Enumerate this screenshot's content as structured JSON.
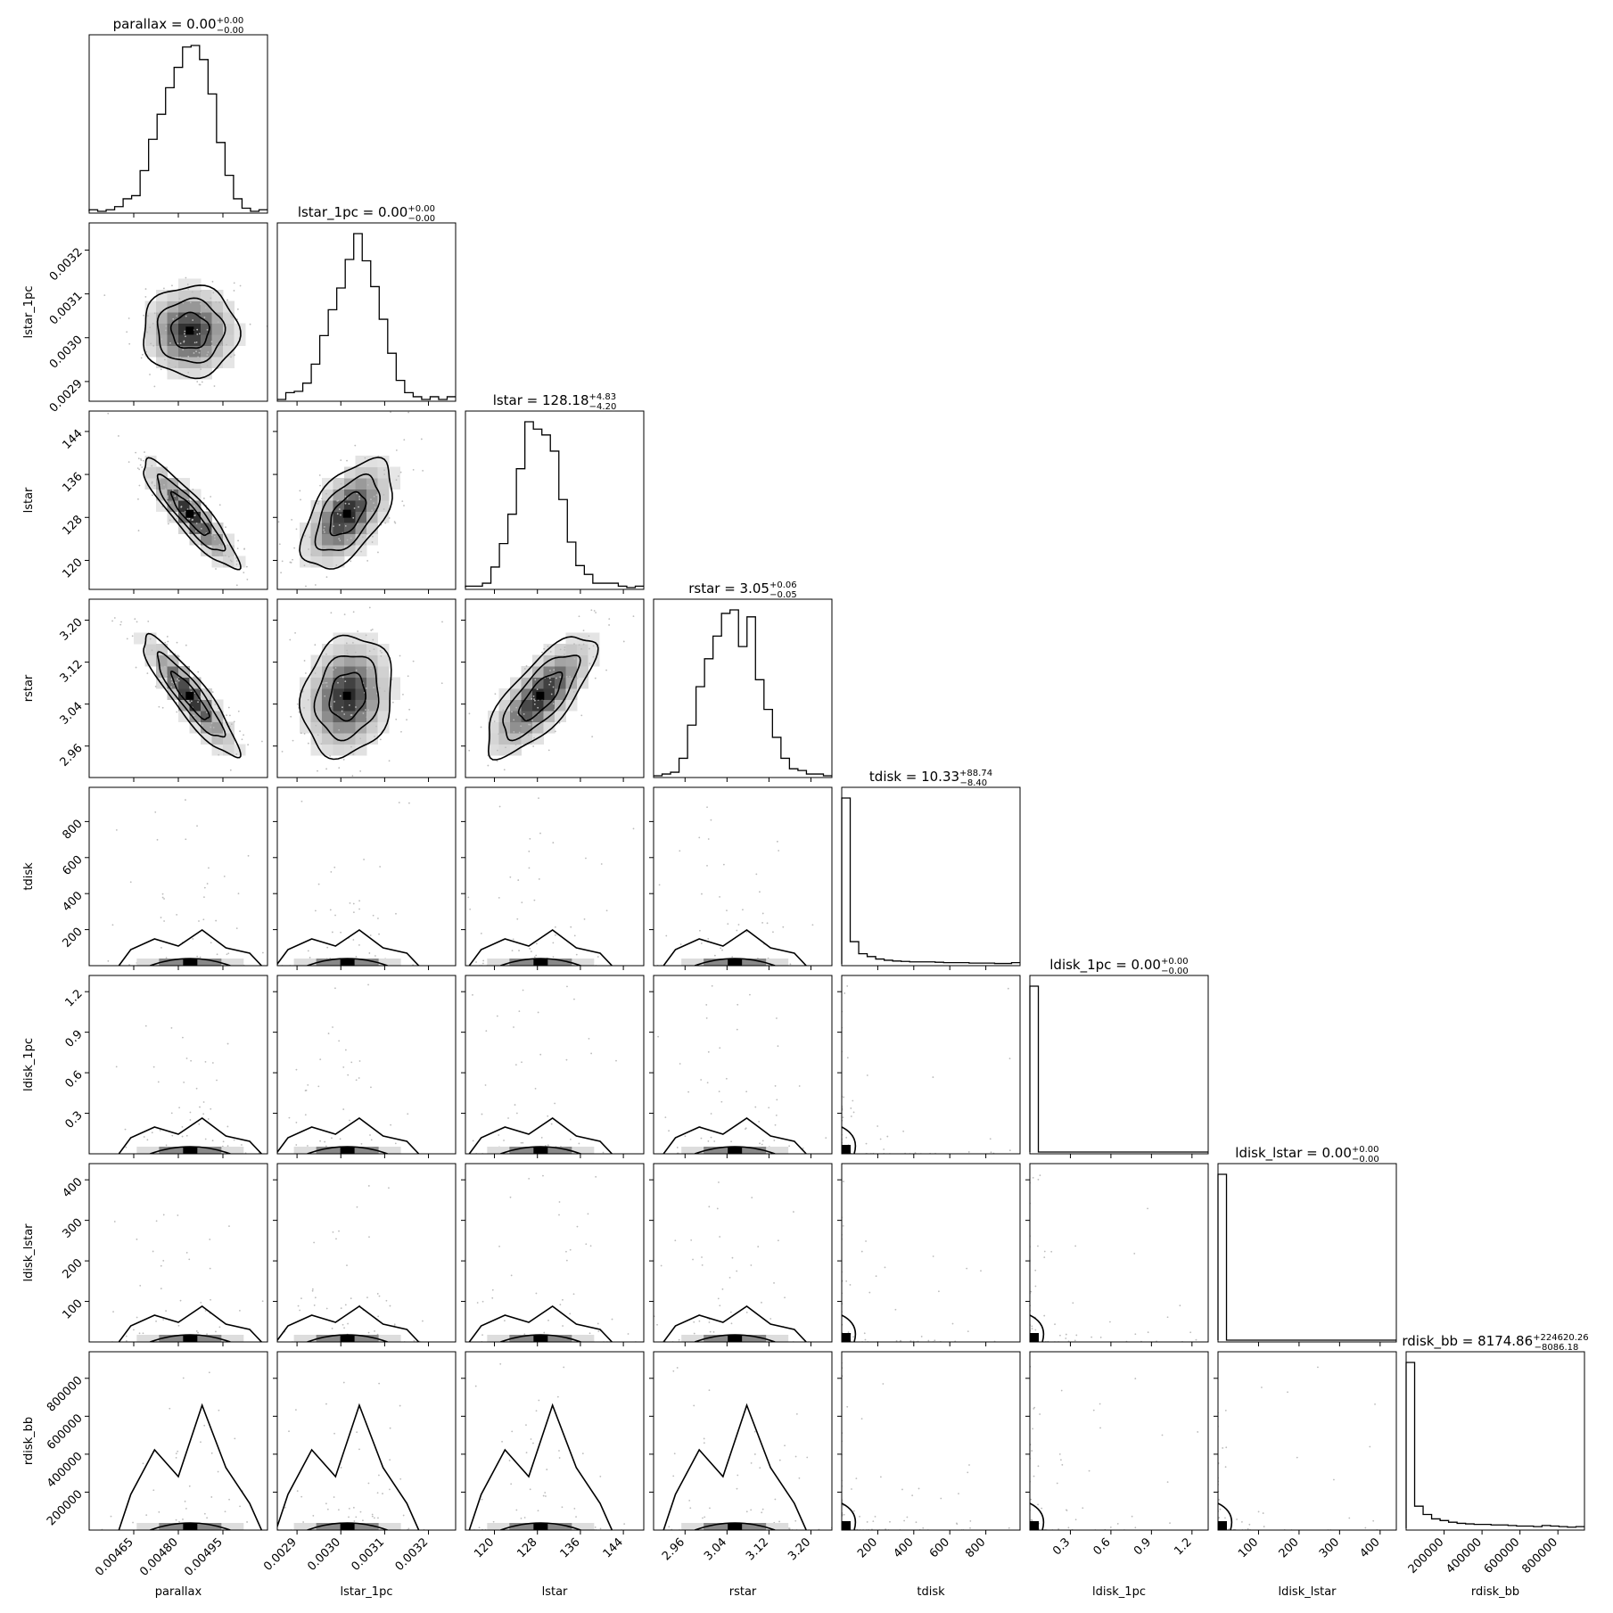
{
  "chart_data": {
    "type": "corner",
    "params": [
      {
        "name": "parallax",
        "label": "parallax",
        "title": "parallax = 0.00",
        "median": "0.00",
        "plus": "+0.00",
        "minus": "−0.00",
        "range": [
          0.0045,
          0.0051
        ],
        "ticks": [
          0.00465,
          0.0048,
          0.00495
        ],
        "tick_labels": [
          "0.00465",
          "0.00480",
          "0.00495"
        ],
        "hist": [
          1,
          0,
          1,
          3,
          8,
          10,
          26,
          46,
          62,
          79,
          92,
          105,
          106,
          97,
          75,
          44,
          23,
          8,
          2,
          0,
          1
        ]
      },
      {
        "name": "lstar_1pc",
        "label": "lstar_1pc",
        "title": "lstar_1pc = 0.00",
        "median": "0.00",
        "plus": "+0.00",
        "minus": "−0.00",
        "range": [
          0.002855,
          0.003262
        ],
        "ticks": [
          0.0029,
          0.003,
          0.0031,
          0.0032
        ],
        "tick_labels": [
          "0.0029",
          "0.0030",
          "0.0031",
          "0.0032"
        ],
        "hist": [
          0,
          5,
          6,
          12,
          26,
          47,
          66,
          82,
          103,
          122,
          102,
          83,
          59,
          34,
          14,
          5,
          2,
          0,
          2,
          0,
          2
        ]
      },
      {
        "name": "lstar",
        "label": "lstar",
        "title": "lstar = 128.18",
        "median": "128.18",
        "plus": "+4.83",
        "minus": "−4.20",
        "range": [
          114.6,
          147.8
        ],
        "ticks": [
          120,
          128,
          136,
          144
        ],
        "tick_labels": [
          "120",
          "128",
          "136",
          "144"
        ],
        "hist": [
          1,
          1,
          3,
          14,
          30,
          50,
          81,
          113,
          108,
          104,
          93,
          60,
          31,
          15,
          9,
          3,
          3,
          3,
          1,
          0,
          1
        ]
      },
      {
        "name": "rstar",
        "label": "rstar",
        "title": "rstar = 3.05",
        "median": "3.05",
        "plus": "+0.06",
        "minus": "−0.05",
        "range": [
          2.9,
          3.24
        ],
        "ticks": [
          2.96,
          3.04,
          3.12,
          3.2
        ],
        "tick_labels": [
          "2.96",
          "3.04",
          "3.12",
          "3.20"
        ],
        "hist": [
          0,
          1,
          2,
          10,
          29,
          51,
          67,
          80,
          93,
          95,
          74,
          91,
          55,
          38,
          22,
          10,
          4,
          3,
          1,
          1,
          0
        ]
      },
      {
        "name": "tdisk",
        "label": "tdisk",
        "title": "tdisk = 10.33",
        "median": "10.33",
        "plus": "+88.74",
        "minus": "−8.40",
        "range": [
          0,
          990
        ],
        "ticks": [
          200,
          400,
          600,
          800
        ],
        "tick_labels": [
          "200",
          "400",
          "600",
          "800"
        ],
        "hist": [
          410,
          55,
          25,
          18,
          12,
          9,
          7,
          6,
          5,
          5,
          5,
          4,
          3,
          3,
          3,
          2,
          2,
          2,
          1,
          1,
          3
        ]
      },
      {
        "name": "ldisk_1pc",
        "label": "ldisk_1pc",
        "title": "ldisk_1pc = 0.00",
        "median": "0.00",
        "plus": "+0.00",
        "minus": "−0.00",
        "range": [
          0,
          1.32
        ],
        "ticks": [
          0.3,
          0.6,
          0.9,
          1.2
        ],
        "tick_labels": [
          "0.3",
          "0.6",
          "0.9",
          "1.2"
        ],
        "hist": [
          600,
          0,
          0,
          0,
          0,
          0,
          0,
          0,
          0,
          0,
          0,
          0,
          0,
          0,
          0,
          0,
          0,
          0,
          0,
          0,
          0
        ]
      },
      {
        "name": "ldisk_lstar",
        "label": "ldisk_lstar",
        "title": "ldisk_lstar = 0.00",
        "median": "0.00",
        "plus": "+0.00",
        "minus": "−0.00",
        "range": [
          0,
          440
        ],
        "ticks": [
          100,
          200,
          300,
          400
        ],
        "tick_labels": [
          "100",
          "200",
          "300",
          "400"
        ],
        "hist": [
          600,
          0,
          0,
          0,
          0,
          0,
          0,
          0,
          0,
          0,
          0,
          0,
          0,
          0,
          0,
          0,
          0,
          0,
          0,
          0,
          0
        ]
      },
      {
        "name": "rdisk_bb",
        "label": "rdisk_bb",
        "title": "rdisk_bb = 8174.86",
        "median": "8174.86",
        "plus": "+224620.26",
        "minus": "−8086.18",
        "range": [
          0,
          940000
        ],
        "ticks": [
          200000,
          400000,
          600000,
          800000
        ],
        "tick_labels": [
          "200000",
          "400000",
          "600000",
          "800000"
        ],
        "hist": [
          300,
          40,
          25,
          17,
          14,
          11,
          9,
          8,
          7,
          7,
          6,
          6,
          5,
          4,
          4,
          3,
          5,
          4,
          3,
          2,
          3
        ]
      }
    ],
    "correlated_pairs": [
      {
        "x": "parallax",
        "y": "lstar",
        "corr": -0.9
      },
      {
        "x": "parallax",
        "y": "rstar",
        "corr": -0.9
      },
      {
        "x": "lstar",
        "y": "rstar",
        "corr": 0.75
      },
      {
        "x": "lstar_1pc",
        "y": "lstar",
        "corr": 0.55
      },
      {
        "x": "lstar_1pc",
        "y": "rstar",
        "corr": 0.15
      }
    ]
  }
}
